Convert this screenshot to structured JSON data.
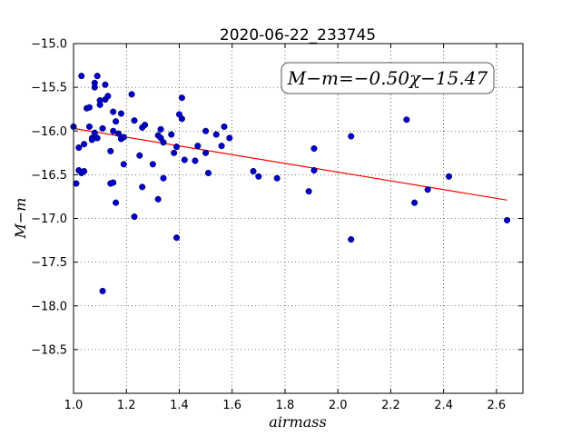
{
  "chart_data": {
    "type": "scatter",
    "title": "2020-06-22_233745",
    "xlabel": "airmass",
    "ylabel": "M−m",
    "xlim": [
      1.0,
      2.7
    ],
    "ylim": [
      -19.0,
      -15.0
    ],
    "y_inverted": true,
    "grid": true,
    "x_ticks": [
      "1.0",
      "1.2",
      "1.4",
      "1.6",
      "1.8",
      "2.0",
      "2.2",
      "2.4",
      "2.6"
    ],
    "y_ticks": [
      "−15.0",
      "−15.5",
      "−16.0",
      "−16.5",
      "−17.0",
      "−17.5",
      "−18.0",
      "−18.5"
    ],
    "annotation": "M−m=−0.50χ−15.47",
    "fit": {
      "slope": -0.5,
      "intercept": -15.47,
      "x_range": [
        1.0,
        2.64
      ],
      "color": "#ff0000"
    },
    "point_color": "#0000cc",
    "points": [
      [
        1.0,
        -15.95
      ],
      [
        1.02,
        -16.19
      ],
      [
        1.01,
        -16.6
      ],
      [
        1.02,
        -16.45
      ],
      [
        1.03,
        -16.48
      ],
      [
        1.04,
        -16.46
      ],
      [
        1.03,
        -15.37
      ],
      [
        1.04,
        -16.15
      ],
      [
        1.05,
        -15.74
      ],
      [
        1.06,
        -15.73
      ],
      [
        1.06,
        -15.95
      ],
      [
        1.07,
        -16.08
      ],
      [
        1.07,
        -16.1
      ],
      [
        1.08,
        -15.45
      ],
      [
        1.08,
        -15.5
      ],
      [
        1.08,
        -16.02
      ],
      [
        1.09,
        -16.08
      ],
      [
        1.09,
        -15.37
      ],
      [
        1.1,
        -15.65
      ],
      [
        1.1,
        -15.7
      ],
      [
        1.11,
        -15.97
      ],
      [
        1.12,
        -15.47
      ],
      [
        1.12,
        -15.64
      ],
      [
        1.13,
        -15.6
      ],
      [
        1.14,
        -16.23
      ],
      [
        1.14,
        -16.6
      ],
      [
        1.15,
        -16.59
      ],
      [
        1.15,
        -16.0
      ],
      [
        1.15,
        -15.78
      ],
      [
        1.16,
        -15.89
      ],
      [
        1.16,
        -16.82
      ],
      [
        1.17,
        -16.03
      ],
      [
        1.18,
        -16.09
      ],
      [
        1.18,
        -15.8
      ],
      [
        1.19,
        -16.07
      ],
      [
        1.19,
        -16.38
      ],
      [
        1.11,
        -17.83
      ],
      [
        1.22,
        -15.58
      ],
      [
        1.23,
        -15.88
      ],
      [
        1.23,
        -16.98
      ],
      [
        1.25,
        -16.28
      ],
      [
        1.26,
        -16.64
      ],
      [
        1.26,
        -15.96
      ],
      [
        1.27,
        -15.93
      ],
      [
        1.3,
        -16.38
      ],
      [
        1.32,
        -16.05
      ],
      [
        1.32,
        -16.78
      ],
      [
        1.33,
        -15.98
      ],
      [
        1.33,
        -16.08
      ],
      [
        1.34,
        -16.54
      ],
      [
        1.34,
        -16.13
      ],
      [
        1.37,
        -16.04
      ],
      [
        1.38,
        -16.25
      ],
      [
        1.39,
        -16.18
      ],
      [
        1.39,
        -17.22
      ],
      [
        1.4,
        -15.81
      ],
      [
        1.41,
        -15.86
      ],
      [
        1.41,
        -15.62
      ],
      [
        1.42,
        -16.33
      ],
      [
        1.46,
        -16.34
      ],
      [
        1.47,
        -16.17
      ],
      [
        1.5,
        -16.0
      ],
      [
        1.5,
        -16.25
      ],
      [
        1.51,
        -16.48
      ],
      [
        1.54,
        -16.04
      ],
      [
        1.56,
        -16.17
      ],
      [
        1.57,
        -15.95
      ],
      [
        1.59,
        -16.08
      ],
      [
        1.68,
        -16.46
      ],
      [
        1.7,
        -16.52
      ],
      [
        1.77,
        -16.54
      ],
      [
        1.89,
        -16.69
      ],
      [
        1.91,
        -16.45
      ],
      [
        1.91,
        -16.2
      ],
      [
        2.05,
        -16.06
      ],
      [
        2.05,
        -17.24
      ],
      [
        2.26,
        -15.87
      ],
      [
        2.29,
        -16.82
      ],
      [
        2.34,
        -16.67
      ],
      [
        2.42,
        -16.52
      ],
      [
        2.64,
        -17.02
      ]
    ]
  }
}
